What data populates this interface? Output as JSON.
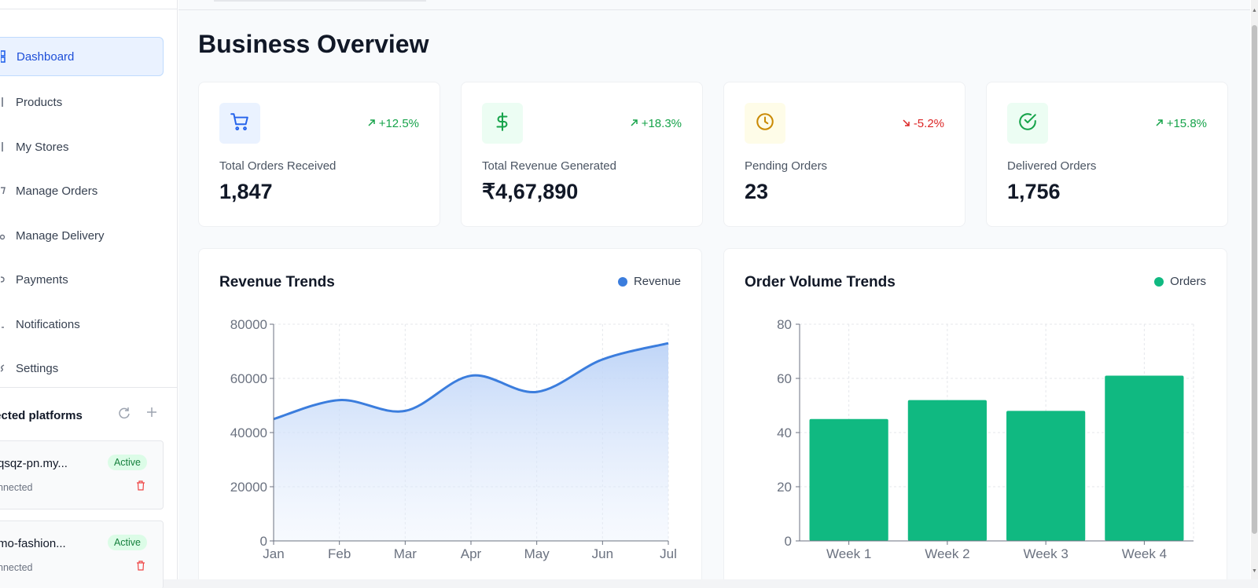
{
  "sidebar": {
    "nav": [
      {
        "label": "Dashboard",
        "icon": "grid-icon",
        "active": true
      },
      {
        "label": "Products",
        "icon": "box-icon",
        "active": false
      },
      {
        "label": "My Stores",
        "icon": "store-icon",
        "active": false
      },
      {
        "label": "Manage Orders",
        "icon": "cart-icon",
        "active": false
      },
      {
        "label": "Manage Delivery",
        "icon": "truck-icon",
        "active": false
      },
      {
        "label": "Payments",
        "icon": "wallet-icon",
        "active": false
      },
      {
        "label": "Notifications",
        "icon": "bell-icon",
        "active": false
      },
      {
        "label": "Settings",
        "icon": "gear-icon",
        "active": false
      }
    ],
    "platforms": {
      "title": "nected platforms",
      "items": [
        {
          "name": "qsqz-pn.my...",
          "status": "nnected",
          "badge": "Active"
        },
        {
          "name": "mo-fashion...",
          "status": "nnected",
          "badge": "Active"
        }
      ]
    }
  },
  "main": {
    "title": "Business Overview",
    "stats": [
      {
        "label": "Total Orders Received",
        "value": "1,847",
        "change": "+12.5%",
        "trend": "up",
        "icon": "shopping-cart-icon",
        "icon_color": "#2563eb",
        "icon_bg": "#eaf2ff"
      },
      {
        "label": "Total Revenue Generated",
        "value": "₹4,67,890",
        "change": "+18.3%",
        "trend": "up",
        "icon": "dollar-icon",
        "icon_color": "#16a34a",
        "icon_bg": "#ecfdf3"
      },
      {
        "label": "Pending Orders",
        "value": "23",
        "change": "-5.2%",
        "trend": "down",
        "icon": "clock-icon",
        "icon_color": "#ca8a04",
        "icon_bg": "#fefce8"
      },
      {
        "label": "Delivered Orders",
        "value": "1,756",
        "change": "+15.8%",
        "trend": "up",
        "icon": "check-circle-icon",
        "icon_color": "#16a34a",
        "icon_bg": "#ecfdf3"
      }
    ]
  },
  "chart_data": [
    {
      "type": "area",
      "title": "Revenue Trends",
      "categories": [
        "Jan",
        "Feb",
        "Mar",
        "Apr",
        "May",
        "Jun",
        "Jul"
      ],
      "series": [
        {
          "name": "Revenue",
          "values": [
            45000,
            52000,
            48000,
            61000,
            55000,
            67000,
            73000
          ],
          "color": "#3b7ddd"
        }
      ],
      "ylim": [
        0,
        80000
      ],
      "yticks": [
        "0",
        "20000",
        "40000",
        "60000",
        "80000"
      ],
      "grid": true,
      "legend": "top-right"
    },
    {
      "type": "bar",
      "title": "Order Volume Trends",
      "categories": [
        "Week 1",
        "Week 2",
        "Week 3",
        "Week 4"
      ],
      "series": [
        {
          "name": "Orders",
          "values": [
            45,
            52,
            48,
            61
          ],
          "color": "#10b981"
        }
      ],
      "ylim": [
        0,
        80
      ],
      "yticks": [
        "0",
        "20",
        "40",
        "60",
        "80"
      ],
      "grid": true,
      "legend": "top-right"
    }
  ]
}
